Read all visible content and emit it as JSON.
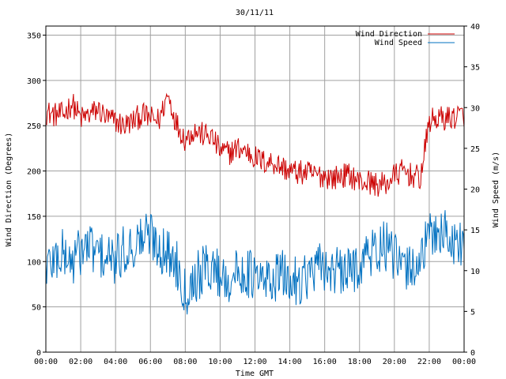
{
  "chart_data": {
    "type": "line",
    "title": "30/11/11",
    "xlabel": "Time GMT",
    "ylabel_left": "Wind Direction (Degrees)",
    "ylabel_right": "Wind Speed (m/s)",
    "x_ticks": [
      "00:00",
      "02:00",
      "04:00",
      "06:00",
      "08:00",
      "10:00",
      "12:00",
      "14:00",
      "16:00",
      "18:00",
      "20:00",
      "22:00",
      "00:00"
    ],
    "y_left_ticks": [
      "0",
      "50",
      "100",
      "150",
      "200",
      "250",
      "300",
      "350"
    ],
    "y_right_ticks": [
      "0",
      "5",
      "10",
      "15",
      "20",
      "25",
      "30",
      "35",
      "40"
    ],
    "y_left_range": [
      0,
      360
    ],
    "y_right_range": [
      0,
      40
    ],
    "x_range_hours": [
      0,
      24
    ],
    "grid": true,
    "legend_position": "top-right",
    "series": [
      {
        "name": "Wind Direction",
        "axis": "left",
        "color": "#cc0000",
        "x": [
          0,
          0.5,
          1,
          1.5,
          2,
          2.5,
          3,
          3.5,
          4,
          4.5,
          5,
          5.5,
          6,
          6.5,
          7,
          7.5,
          8,
          8.5,
          9,
          9.5,
          10,
          10.5,
          11,
          11.5,
          12,
          12.5,
          13,
          13.5,
          14,
          14.5,
          15,
          15.5,
          16,
          16.5,
          17,
          17.5,
          18,
          18.5,
          19,
          19.5,
          20,
          20.5,
          21,
          21.5,
          22,
          22.5,
          23,
          23.5,
          24
        ],
        "values": [
          265,
          262,
          262,
          275,
          258,
          262,
          268,
          258,
          255,
          250,
          255,
          262,
          258,
          256,
          285,
          252,
          235,
          245,
          240,
          238,
          222,
          220,
          225,
          222,
          215,
          210,
          210,
          205,
          200,
          198,
          198,
          195,
          195,
          192,
          195,
          195,
          188,
          188,
          185,
          185,
          195,
          200,
          195,
          192,
          255,
          258,
          258,
          260,
          262
        ]
      },
      {
        "name": "Wind Speed",
        "axis": "right",
        "color": "#0070c0",
        "x": [
          0,
          0.5,
          1,
          1.5,
          2,
          2.5,
          3,
          3.5,
          4,
          4.5,
          5,
          5.5,
          6,
          6.5,
          7,
          7.5,
          8,
          8.5,
          9,
          9.5,
          10,
          10.5,
          11,
          11.5,
          12,
          12.5,
          13,
          13.5,
          14,
          14.5,
          15,
          15.5,
          16,
          16.5,
          17,
          17.5,
          18,
          18.5,
          19,
          19.5,
          20,
          20.5,
          21,
          21.5,
          22,
          22.5,
          23,
          23.5,
          24
        ],
        "values": [
          10.5,
          11.5,
          12,
          11,
          12.5,
          13,
          12,
          11.5,
          11,
          12.5,
          13,
          14,
          14.5,
          13,
          12,
          11,
          7.5,
          9,
          10,
          10.5,
          9.5,
          9,
          9.5,
          10,
          9,
          8.5,
          9,
          9.5,
          8.5,
          9,
          9.5,
          10,
          10.5,
          10,
          9.5,
          10,
          11,
          12,
          12.5,
          13,
          11.5,
          10,
          10.5,
          11.5,
          14,
          15,
          14.5,
          13,
          14
        ]
      }
    ]
  }
}
